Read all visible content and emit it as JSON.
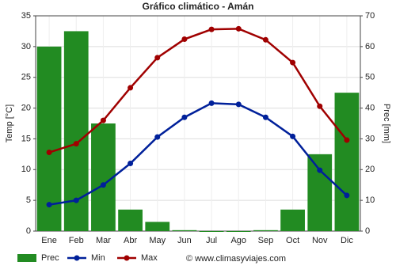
{
  "chart_data": {
    "type": "combo",
    "title": "Gráfico climático - Amán",
    "y_label": "Temp [°C]",
    "y2_label": "Prec [mm]",
    "source": "© www.climasyviajes.com",
    "categories": [
      "Ene",
      "Feb",
      "Mar",
      "Abr",
      "May",
      "Jun",
      "Jul",
      "Ago",
      "Sep",
      "Oct",
      "Nov",
      "Dic"
    ],
    "series": [
      {
        "name": "Prec",
        "type": "bar",
        "axis": "y2",
        "color": "#228b22",
        "values": [
          60,
          65,
          35,
          7,
          3,
          0.3,
          0,
          0,
          0.3,
          7,
          25,
          45
        ]
      },
      {
        "name": "Min",
        "type": "line",
        "color": "#00209a",
        "values": [
          4.3,
          5.0,
          7.5,
          11.0,
          15.3,
          18.5,
          20.8,
          20.6,
          18.5,
          15.4,
          9.9,
          5.8
        ]
      },
      {
        "name": "Max",
        "type": "line",
        "color": "#a00000",
        "values": [
          12.8,
          14.2,
          18.0,
          23.3,
          28.2,
          31.2,
          32.8,
          32.9,
          31.1,
          27.4,
          20.3,
          14.8
        ]
      }
    ],
    "ylim": [
      0,
      35
    ],
    "yticks": [
      0,
      5,
      10,
      15,
      20,
      25,
      30,
      35
    ],
    "y2lim": [
      0,
      70
    ],
    "y2ticks": [
      0,
      10,
      20,
      30,
      40,
      50,
      60,
      70
    ],
    "grid": true
  }
}
